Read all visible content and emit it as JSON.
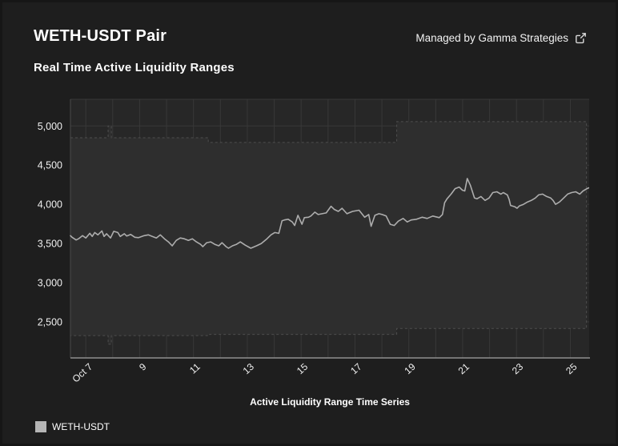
{
  "header": {
    "title": "WETH-USDT Pair",
    "subtitle": "Real Time Active Liquidity Ranges",
    "managed_by": "Managed by Gamma Strategies"
  },
  "legend": {
    "label": "WETH-USDT",
    "swatch_color": "#b5b5b5"
  },
  "colors": {
    "page_bg": "#1e1e1e",
    "plot_bg": "#272727",
    "band_fill": "#2e2e2e",
    "band_edge": "#4e4e4e",
    "gridline": "#383838",
    "axis_line": "#8f8f8f",
    "line_color": "#adadad",
    "tick_text": "#f0f0f0"
  },
  "chart_data": {
    "type": "line",
    "title": "Active Liquidity Range Time Series",
    "legend_position": "bottom-left",
    "grid": true,
    "x_axis": {
      "unit": "day of October",
      "xlim": [
        6.43,
        25.7
      ],
      "grid_step_days": 1,
      "tick_days": [
        7,
        9,
        11,
        13,
        15,
        17,
        19,
        21,
        23,
        25
      ],
      "tick_labels": [
        "Oct 7",
        "9",
        "11",
        "13",
        "15",
        "17",
        "19",
        "21",
        "23",
        "25"
      ]
    },
    "y_axis": {
      "ylim": [
        2040,
        5340
      ],
      "tick_values": [
        5000,
        4500,
        4000,
        3500,
        3000,
        2500
      ],
      "tick_labels": [
        "5,000",
        "4,500",
        "4,000",
        "3,500",
        "3,000",
        "2,500"
      ]
    },
    "band": {
      "name": "active-liquidity-range",
      "segments": [
        {
          "from_day": 6.43,
          "to_day": 7.83,
          "low": 2325,
          "high": 4850
        },
        {
          "from_day": 7.83,
          "to_day": 7.95,
          "low": 2215,
          "high": 5000
        },
        {
          "from_day": 7.95,
          "to_day": 11.55,
          "low": 2325,
          "high": 4850
        },
        {
          "from_day": 11.55,
          "to_day": 18.55,
          "low": 2340,
          "high": 4790
        },
        {
          "from_day": 18.55,
          "to_day": 25.6,
          "low": 2415,
          "high": 5055
        }
      ]
    },
    "series": [
      {
        "name": "WETH-USDT",
        "points": [
          [
            6.43,
            3600
          ],
          [
            6.49,
            3580
          ],
          [
            6.64,
            3545
          ],
          [
            6.73,
            3560
          ],
          [
            6.88,
            3600
          ],
          [
            7.0,
            3570
          ],
          [
            7.15,
            3630
          ],
          [
            7.24,
            3590
          ],
          [
            7.33,
            3640
          ],
          [
            7.45,
            3610
          ],
          [
            7.6,
            3660
          ],
          [
            7.68,
            3590
          ],
          [
            7.77,
            3625
          ],
          [
            7.92,
            3570
          ],
          [
            8.04,
            3655
          ],
          [
            8.19,
            3640
          ],
          [
            8.28,
            3590
          ],
          [
            8.43,
            3625
          ],
          [
            8.52,
            3595
          ],
          [
            8.67,
            3615
          ],
          [
            8.82,
            3580
          ],
          [
            8.96,
            3575
          ],
          [
            9.17,
            3600
          ],
          [
            9.32,
            3610
          ],
          [
            9.47,
            3590
          ],
          [
            9.62,
            3570
          ],
          [
            9.77,
            3610
          ],
          [
            9.92,
            3560
          ],
          [
            10.07,
            3520
          ],
          [
            10.21,
            3470
          ],
          [
            10.36,
            3540
          ],
          [
            10.51,
            3570
          ],
          [
            10.66,
            3560
          ],
          [
            10.81,
            3540
          ],
          [
            10.96,
            3560
          ],
          [
            11.11,
            3520
          ],
          [
            11.26,
            3490
          ],
          [
            11.35,
            3460
          ],
          [
            11.49,
            3510
          ],
          [
            11.64,
            3520
          ],
          [
            11.79,
            3490
          ],
          [
            11.94,
            3470
          ],
          [
            12.06,
            3510
          ],
          [
            12.21,
            3460
          ],
          [
            12.3,
            3440
          ],
          [
            12.45,
            3470
          ],
          [
            12.6,
            3490
          ],
          [
            12.74,
            3520
          ],
          [
            12.92,
            3480
          ],
          [
            13.13,
            3440
          ],
          [
            13.34,
            3470
          ],
          [
            13.52,
            3500
          ],
          [
            13.73,
            3560
          ],
          [
            13.88,
            3610
          ],
          [
            14.02,
            3640
          ],
          [
            14.17,
            3630
          ],
          [
            14.29,
            3790
          ],
          [
            14.38,
            3800
          ],
          [
            14.52,
            3810
          ],
          [
            14.67,
            3775
          ],
          [
            14.76,
            3730
          ],
          [
            14.88,
            3860
          ],
          [
            15.03,
            3745
          ],
          [
            15.12,
            3830
          ],
          [
            15.27,
            3835
          ],
          [
            15.36,
            3850
          ],
          [
            15.51,
            3900
          ],
          [
            15.63,
            3870
          ],
          [
            15.78,
            3880
          ],
          [
            15.93,
            3890
          ],
          [
            16.11,
            3975
          ],
          [
            16.23,
            3935
          ],
          [
            16.38,
            3910
          ],
          [
            16.52,
            3950
          ],
          [
            16.7,
            3880
          ],
          [
            16.91,
            3910
          ],
          [
            17.15,
            3925
          ],
          [
            17.36,
            3835
          ],
          [
            17.51,
            3870
          ],
          [
            17.6,
            3720
          ],
          [
            17.74,
            3860
          ],
          [
            17.89,
            3880
          ],
          [
            18.01,
            3870
          ],
          [
            18.16,
            3850
          ],
          [
            18.31,
            3745
          ],
          [
            18.46,
            3730
          ],
          [
            18.61,
            3785
          ],
          [
            18.79,
            3820
          ],
          [
            18.94,
            3775
          ],
          [
            19.09,
            3800
          ],
          [
            19.29,
            3810
          ],
          [
            19.5,
            3835
          ],
          [
            19.68,
            3820
          ],
          [
            19.89,
            3850
          ],
          [
            20.13,
            3830
          ],
          [
            20.25,
            3870
          ],
          [
            20.33,
            4020
          ],
          [
            20.42,
            4070
          ],
          [
            20.57,
            4130
          ],
          [
            20.72,
            4200
          ],
          [
            20.87,
            4220
          ],
          [
            20.99,
            4180
          ],
          [
            21.08,
            4170
          ],
          [
            21.17,
            4330
          ],
          [
            21.29,
            4240
          ],
          [
            21.44,
            4080
          ],
          [
            21.53,
            4070
          ],
          [
            21.68,
            4100
          ],
          [
            21.83,
            4050
          ],
          [
            21.98,
            4080
          ],
          [
            22.12,
            4150
          ],
          [
            22.27,
            4160
          ],
          [
            22.42,
            4130
          ],
          [
            22.51,
            4150
          ],
          [
            22.66,
            4120
          ],
          [
            22.73,
            4060
          ],
          [
            22.78,
            3985
          ],
          [
            22.93,
            3970
          ],
          [
            23.02,
            3950
          ],
          [
            23.11,
            3980
          ],
          [
            23.26,
            4000
          ],
          [
            23.41,
            4030
          ],
          [
            23.55,
            4050
          ],
          [
            23.7,
            4080
          ],
          [
            23.82,
            4120
          ],
          [
            23.97,
            4130
          ],
          [
            24.12,
            4100
          ],
          [
            24.27,
            4080
          ],
          [
            24.36,
            4050
          ],
          [
            24.45,
            4000
          ],
          [
            24.6,
            4030
          ],
          [
            24.75,
            4080
          ],
          [
            24.9,
            4130
          ],
          [
            25.05,
            4150
          ],
          [
            25.2,
            4160
          ],
          [
            25.35,
            4130
          ],
          [
            25.47,
            4170
          ],
          [
            25.62,
            4200
          ],
          [
            25.68,
            4210
          ]
        ]
      }
    ]
  }
}
